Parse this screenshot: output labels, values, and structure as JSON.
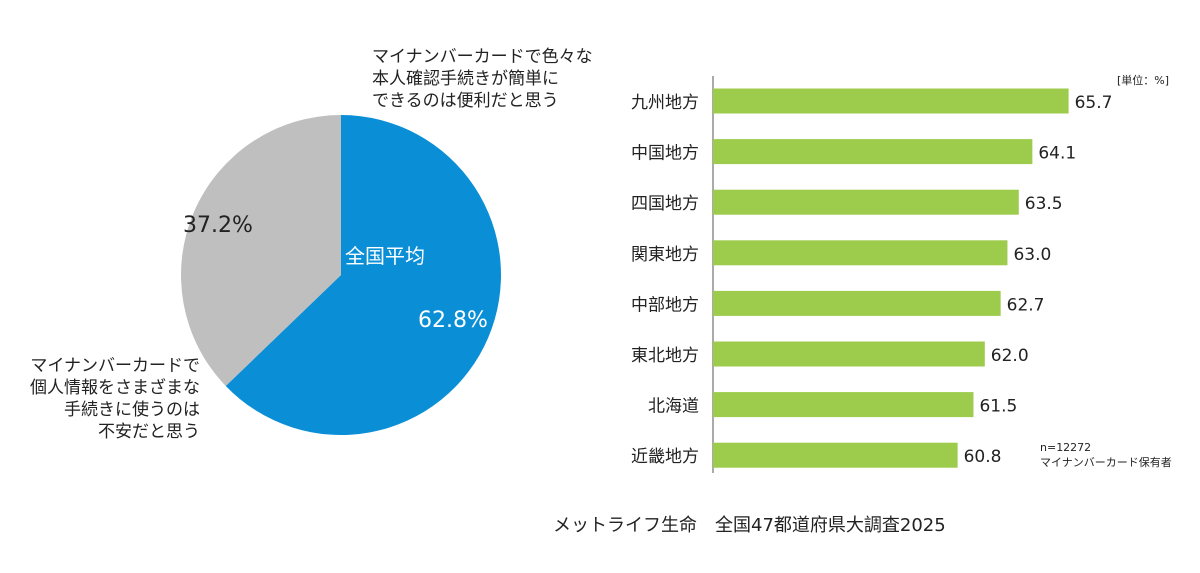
{
  "chart_data": [
    {
      "type": "pie",
      "center_label": "全国平均",
      "slices": [
        {
          "label": "マイナンバーカードで色々な\n本人確認手続きが簡単に\nできるのは便利だと思う",
          "value": 62.8,
          "value_label": "62.8%",
          "color": "#0a8fd6"
        },
        {
          "label": "マイナンバーカードで\n個人情報をさまざまな\n手続きに使うのは\n不安だと思う",
          "value": 37.2,
          "value_label": "37.2%",
          "color": "#bfbfbf"
        }
      ]
    },
    {
      "type": "bar",
      "orientation": "horizontal",
      "unit_label": "[単位：%]",
      "categories": [
        "九州地方",
        "中国地方",
        "四国地方",
        "関東地方",
        "中部地方",
        "東北地方",
        "北海道",
        "近畿地方"
      ],
      "values": [
        65.7,
        64.1,
        63.5,
        63.0,
        62.7,
        62.0,
        61.5,
        60.8
      ],
      "value_labels": [
        "65.7",
        "64.1",
        "63.5",
        "63.0",
        "62.7",
        "62.0",
        "61.5",
        "60.8"
      ],
      "xlim": [
        50,
        68
      ],
      "color": "#9dcb4c",
      "note": [
        "n=12272",
        "マイナンバーカード保有者"
      ]
    }
  ],
  "source": "メットライフ生命　全国47都道府県大調査2025"
}
